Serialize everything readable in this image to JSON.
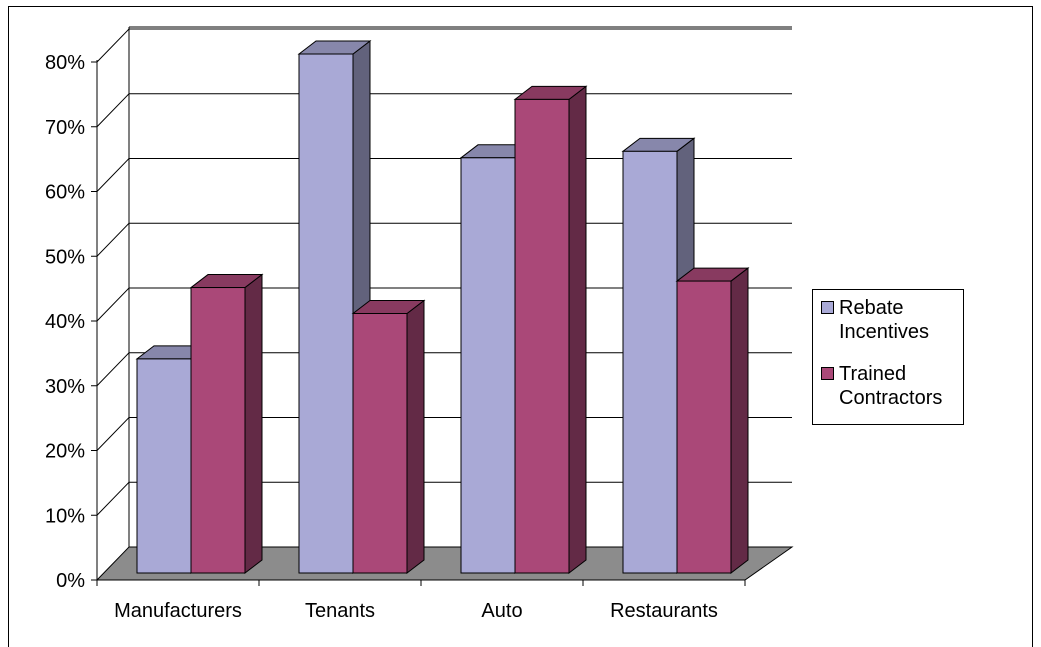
{
  "chart_data": {
    "type": "bar",
    "categories": [
      "Manufacturers",
      "Tenants",
      "Auto",
      "Restaurants"
    ],
    "series": [
      {
        "name": "Rebate Incentives",
        "values": [
          33,
          80,
          64,
          65
        ],
        "color": "#A9A9D6"
      },
      {
        "name": "Trained Contractors",
        "values": [
          44,
          40,
          73,
          45
        ],
        "color": "#AA4878"
      }
    ],
    "y_ticks": [
      "0%",
      "10%",
      "20%",
      "30%",
      "40%",
      "50%",
      "60%",
      "70%",
      "80%"
    ],
    "ylim": [
      0,
      80
    ],
    "title": "",
    "xlabel": "",
    "ylabel": "",
    "grid": true,
    "legend_position": "right",
    "style": "3d-clustered-column",
    "floor_color": "#8C8C8C"
  }
}
